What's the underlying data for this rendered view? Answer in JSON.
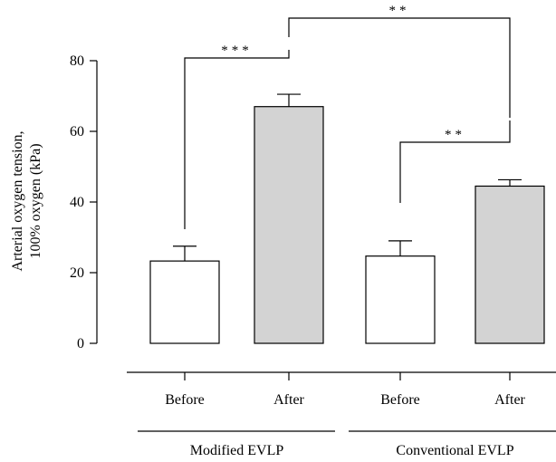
{
  "chart_data": {
    "type": "bar",
    "title": "",
    "xlabel": "",
    "ylabel": [
      "Arterial oxygen tension,",
      "100% oxygen (kPa)"
    ],
    "ylim": [
      0,
      80
    ],
    "yticks": [
      0,
      20,
      40,
      60,
      80
    ],
    "grid": false,
    "categories": [
      "Before",
      "After",
      "Before",
      "After"
    ],
    "groups": [
      {
        "label": "Modified EVLP",
        "categories": [
          0,
          1
        ]
      },
      {
        "label": "Conventional EVLP",
        "categories": [
          2,
          3
        ]
      }
    ],
    "values": [
      23.3,
      67.0,
      24.7,
      44.5
    ],
    "error_upper": [
      27.5,
      70.5,
      29.0,
      46.3
    ],
    "bar_colors": [
      "#ffffff",
      "#d3d3d3",
      "#ffffff",
      "#d3d3d3"
    ],
    "significance": [
      {
        "from": 0,
        "to": 1,
        "label": "***"
      },
      {
        "from": 2,
        "to": 3,
        "label": "**"
      },
      {
        "from": 1,
        "to": 3,
        "label": "**"
      }
    ]
  }
}
